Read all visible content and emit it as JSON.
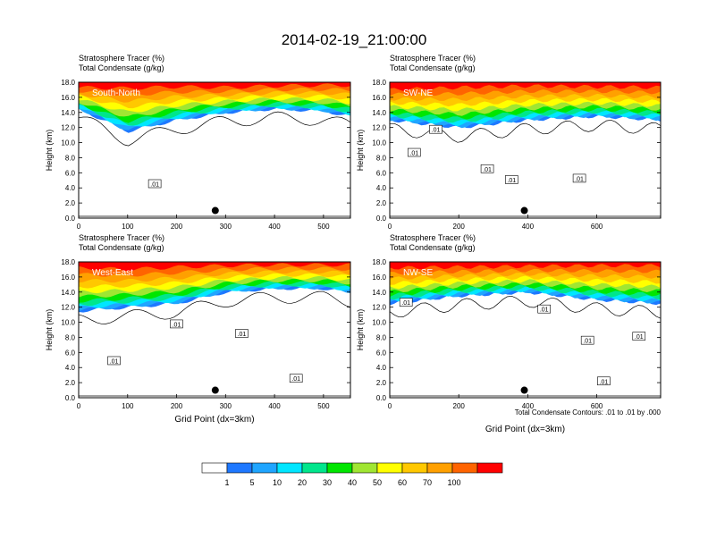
{
  "figure": {
    "title": "2014-02-19_21:00:00",
    "footnote": "Total Condensate Contours: .01 to .01 by .000"
  },
  "colorbar": {
    "labels": [
      "1",
      "5",
      "10",
      "20",
      "30",
      "40",
      "50",
      "60",
      "70",
      "100"
    ],
    "colors": [
      "#ffffff",
      "#1e78ff",
      "#1fa5ff",
      "#00e6ff",
      "#00e68c",
      "#00e600",
      "#a0e632",
      "#ffff00",
      "#ffc800",
      "#ffa000",
      "#ff6400",
      "#ff0000"
    ]
  },
  "chart_data": [
    {
      "type": "heatmap",
      "panel_label": "South-North",
      "header_line1": "Stratosphere Tracer   (%)",
      "header_line2": "Total Condensate   (g/kg)",
      "ylabel": "Height (km)",
      "xlabel": "",
      "xlim": [
        0,
        555
      ],
      "ylim": [
        0,
        18
      ],
      "xticks": [
        "0",
        "100",
        "200",
        "300",
        "400",
        "500"
      ],
      "yticks": [
        "0.0",
        "2.0",
        "4.0",
        "6.0",
        "8.0",
        "10.0",
        "12.0",
        "14.0",
        "16.0",
        "18.0"
      ],
      "contour_labels": [
        ".01"
      ],
      "marker_point": {
        "x": 279,
        "y": 1.0
      },
      "tracer_profile_km": {
        "x": [
          0,
          100,
          200,
          300,
          400,
          500,
          555
        ],
        "band_100pct_bottom": [
          17.3,
          17.2,
          17.4,
          17.3,
          17.5,
          17.6,
          17.6
        ],
        "band_1pct_bottom": [
          14.5,
          11.5,
          13.0,
          14.0,
          14.5,
          14.2,
          13.5
        ]
      }
    },
    {
      "type": "heatmap",
      "panel_label": "SW-NE",
      "header_line1": "Stratosphere Tracer   (%)",
      "header_line2": "Total Condensate   (g/kg)",
      "ylabel": "Height (km)",
      "xlabel": "",
      "xlim": [
        0,
        785
      ],
      "ylim": [
        0,
        18
      ],
      "xticks": [
        "0",
        "200",
        "400",
        "600"
      ],
      "yticks": [
        "0.0",
        "2.0",
        "4.0",
        "6.0",
        "8.0",
        "10.0",
        "12.0",
        "14.0",
        "16.0",
        "18.0"
      ],
      "contour_labels": [
        ".01",
        ".01",
        ".01",
        ".01",
        ".01"
      ],
      "marker_point": {
        "x": 390,
        "y": 1.0
      },
      "tracer_profile_km": {
        "x": [
          0,
          200,
          400,
          600,
          785
        ],
        "band_100pct_bottom": [
          17.0,
          17.3,
          17.5,
          17.4,
          17.3
        ],
        "band_1pct_bottom": [
          13.0,
          12.0,
          13.0,
          13.5,
          13.0
        ]
      }
    },
    {
      "type": "heatmap",
      "panel_label": "West-East",
      "header_line1": "Stratosphere Tracer   (%)",
      "header_line2": "Total Condensate   (g/kg)",
      "ylabel": "Height (km)",
      "xlabel": "Grid Point (dx=3km)",
      "xlim": [
        0,
        555
      ],
      "ylim": [
        0,
        18
      ],
      "xticks": [
        "0",
        "100",
        "200",
        "300",
        "400",
        "500"
      ],
      "yticks": [
        "0.0",
        "2.0",
        "4.0",
        "6.0",
        "8.0",
        "10.0",
        "12.0",
        "14.0",
        "16.0",
        "18.0"
      ],
      "contour_labels": [
        ".01",
        ".01",
        ".01",
        ".01"
      ],
      "marker_point": {
        "x": 279,
        "y": 1.0
      },
      "tracer_profile_km": {
        "x": [
          0,
          100,
          200,
          300,
          400,
          500,
          555
        ],
        "band_100pct_bottom": [
          17.2,
          17.0,
          17.3,
          17.5,
          17.6,
          17.6,
          17.6
        ],
        "band_1pct_bottom": [
          11.5,
          12.0,
          12.5,
          14.0,
          14.5,
          14.5,
          14.0
        ]
      }
    },
    {
      "type": "heatmap",
      "panel_label": "NW-SE",
      "header_line1": "Stratosphere Tracer   (%)",
      "header_line2": "Total Condensate   (g/kg)",
      "ylabel": "Height (km)",
      "xlabel": "Grid Point (dx=3km)",
      "xlim": [
        0,
        785
      ],
      "ylim": [
        0,
        18
      ],
      "xticks": [
        "0",
        "200",
        "400",
        "600"
      ],
      "yticks": [
        "0.0",
        "2.0",
        "4.0",
        "6.0",
        "8.0",
        "10.0",
        "12.0",
        "14.0",
        "16.0",
        "18.0"
      ],
      "contour_labels": [
        ".01",
        ".01",
        ".01",
        ".01",
        ".01"
      ],
      "marker_point": {
        "x": 390,
        "y": 1.0
      },
      "tracer_profile_km": {
        "x": [
          0,
          200,
          400,
          600,
          785
        ],
        "band_100pct_bottom": [
          17.2,
          17.3,
          17.4,
          17.5,
          17.5
        ],
        "band_1pct_bottom": [
          12.5,
          13.5,
          14.0,
          13.0,
          12.5
        ]
      }
    }
  ]
}
